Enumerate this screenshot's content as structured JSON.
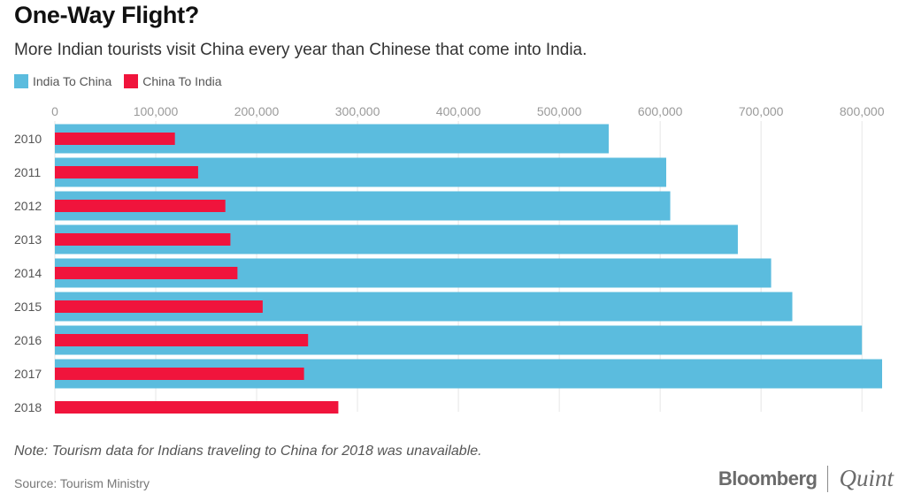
{
  "title": "One-Way Flight?",
  "subtitle": "More Indian tourists visit China every year than Chinese that come into India.",
  "legend": [
    {
      "label": "India To China",
      "color": "#5bbcde"
    },
    {
      "label": "China To India",
      "color": "#f0143c"
    }
  ],
  "note": "Note: Tourism data for Indians traveling to China for 2018 was unavailable.",
  "source": "Source: Tourism Ministry",
  "brand": {
    "left": "Bloomberg",
    "right": "Quint"
  },
  "chart_data": {
    "type": "bar",
    "orientation": "horizontal",
    "title": "One-Way Flight?",
    "categories": [
      "2010",
      "2011",
      "2012",
      "2013",
      "2014",
      "2015",
      "2016",
      "2017",
      "2018"
    ],
    "series": [
      {
        "name": "India To China",
        "color": "#5bbcde",
        "values": [
          549000,
          606000,
          610000,
          677000,
          710000,
          731000,
          800000,
          820000,
          null
        ]
      },
      {
        "name": "China To India",
        "color": "#f0143c",
        "values": [
          119000,
          142000,
          169000,
          174000,
          181000,
          206000,
          251000,
          247000,
          281000
        ]
      }
    ],
    "xlim": [
      0,
      820000
    ],
    "xticks": [
      0,
      100000,
      200000,
      300000,
      400000,
      500000,
      600000,
      700000,
      800000
    ],
    "xtick_labels": [
      "0",
      "100,000",
      "200,000",
      "300,000",
      "400,000",
      "500,000",
      "600,000",
      "700,000",
      "800,000"
    ],
    "grid": true,
    "legend_position": "top-left"
  }
}
